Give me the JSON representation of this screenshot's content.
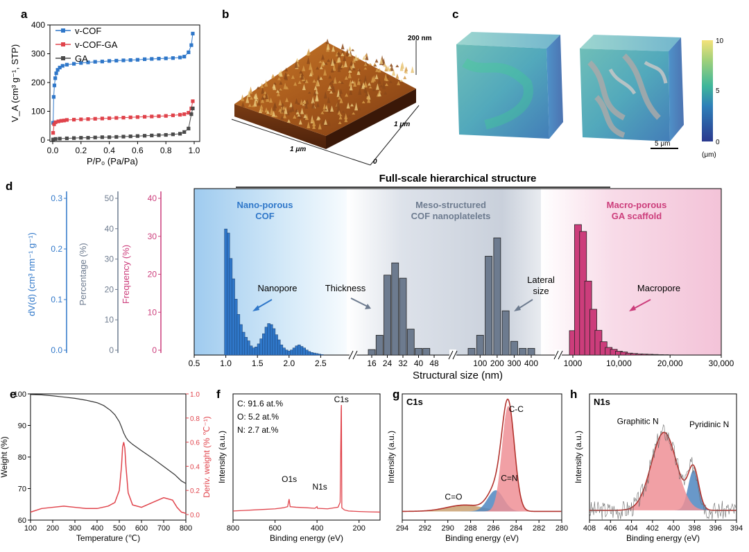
{
  "panel_labels": {
    "a": "a",
    "b": "b",
    "c": "c",
    "d": "d",
    "e": "e",
    "f": "f",
    "g": "g",
    "h": "h"
  },
  "colors": {
    "blue": "#2f77c9",
    "red": "#e0434b",
    "gray": "#4a4a4a",
    "pink": "#cc3d7b",
    "slate": "#6d7b8f",
    "salmon": "#ef8f95",
    "steel": "#4f86c0",
    "darkred": "#b2312c"
  },
  "chart_data": [
    {
      "id": "a",
      "type": "line",
      "xlabel": "P/P₀ (Pa/Pa)",
      "ylabel": "V_A (cm³ g⁻¹, STP)",
      "xlim": [
        0,
        1.0
      ],
      "ylim": [
        0,
        400
      ],
      "xticks": [
        "0.0",
        "0.2",
        "0.4",
        "0.6",
        "0.8",
        "1.0"
      ],
      "yticks": [
        "0",
        "100",
        "200",
        "300",
        "400"
      ],
      "legend": [
        "v-COF",
        "v-COF-GA",
        "GA"
      ],
      "series": [
        {
          "name": "v-COF",
          "color": "#2f77c9",
          "x": [
            0.003,
            0.007,
            0.012,
            0.018,
            0.025,
            0.035,
            0.05,
            0.07,
            0.1,
            0.15,
            0.2,
            0.25,
            0.3,
            0.35,
            0.4,
            0.45,
            0.5,
            0.55,
            0.6,
            0.65,
            0.7,
            0.75,
            0.8,
            0.85,
            0.9,
            0.93,
            0.96,
            0.98,
            0.99
          ],
          "y": [
            60,
            150,
            190,
            215,
            232,
            244,
            252,
            258,
            262,
            265,
            268,
            270,
            272,
            273,
            275,
            276,
            277,
            278,
            279,
            281,
            282,
            283,
            284,
            285,
            287,
            290,
            305,
            330,
            370
          ]
        },
        {
          "name": "v-COF-GA",
          "color": "#e0434b",
          "x": [
            0.003,
            0.01,
            0.02,
            0.04,
            0.06,
            0.08,
            0.1,
            0.15,
            0.2,
            0.25,
            0.3,
            0.35,
            0.4,
            0.45,
            0.5,
            0.55,
            0.6,
            0.65,
            0.7,
            0.75,
            0.8,
            0.85,
            0.9,
            0.93,
            0.96,
            0.98,
            0.99
          ],
          "y": [
            25,
            55,
            62,
            65,
            67,
            68,
            70,
            71,
            72,
            73,
            74,
            75,
            76,
            77,
            78,
            79,
            80,
            81,
            82,
            83,
            84,
            86,
            88,
            90,
            95,
            110,
            135
          ]
        },
        {
          "name": "GA",
          "color": "#4a4a4a",
          "x": [
            0.003,
            0.02,
            0.05,
            0.1,
            0.15,
            0.2,
            0.25,
            0.3,
            0.35,
            0.4,
            0.45,
            0.5,
            0.55,
            0.6,
            0.65,
            0.7,
            0.75,
            0.8,
            0.85,
            0.9,
            0.93,
            0.96,
            0.98,
            0.99
          ],
          "y": [
            2,
            4,
            5,
            6,
            7,
            8,
            8,
            9,
            10,
            10,
            11,
            12,
            13,
            14,
            15,
            16,
            17,
            18,
            20,
            22,
            28,
            40,
            90,
            110
          ]
        }
      ]
    },
    {
      "id": "d",
      "type": "bar",
      "title": "Full-scale hierarchical structure",
      "xlabel": "Structural size (nm)",
      "y_axes": [
        {
          "label": "dV(d) (cm³ nm⁻¹ g⁻¹)",
          "ticks": [
            "0.0",
            "0.1",
            "0.2",
            "0.3"
          ],
          "color": "#2f77c9"
        },
        {
          "label": "Percentage (%)",
          "ticks": [
            "0",
            "10",
            "20",
            "30",
            "40",
            "50"
          ],
          "color": "#6d7b8f"
        },
        {
          "label": "Frequency (%)",
          "ticks": [
            "0",
            "10",
            "20",
            "30",
            "40"
          ],
          "color": "#cc3d7b"
        }
      ],
      "regions": [
        {
          "label": "Nano-porous\nCOF",
          "color": "#2f77c9"
        },
        {
          "label": "Meso-structured\nCOF nanoplatelets",
          "color": "#6d7b8f"
        },
        {
          "label": "Macro-porous\nGA scaffold",
          "color": "#cc3d7b"
        }
      ],
      "annotations": [
        "Nanopore",
        "Thickness",
        "Lateral\nsize",
        "Macropore"
      ],
      "segments": [
        {
          "name": "Nanopore",
          "axis": "dV(d) (cm³ nm⁻¹ g⁻¹)",
          "range": [
            0.5,
            3.0
          ],
          "tick_labels": [
            "0.5",
            "1.0",
            "1.5",
            "2.0",
            "2.5"
          ],
          "x": [
            1.0,
            1.04,
            1.08,
            1.12,
            1.16,
            1.2,
            1.24,
            1.28,
            1.32,
            1.36,
            1.4,
            1.44,
            1.48,
            1.52,
            1.56,
            1.6,
            1.64,
            1.68,
            1.72,
            1.76,
            1.8,
            1.84,
            1.88,
            1.92,
            1.96,
            2.0,
            2.04,
            2.08,
            2.12,
            2.16,
            2.2,
            2.24,
            2.28,
            2.32,
            2.36,
            2.4,
            2.44,
            2.48,
            2.52
          ],
          "values": [
            0.248,
            0.24,
            0.19,
            0.15,
            0.11,
            0.08,
            0.06,
            0.045,
            0.035,
            0.028,
            0.018,
            0.014,
            0.016,
            0.022,
            0.032,
            0.042,
            0.055,
            0.062,
            0.06,
            0.052,
            0.04,
            0.03,
            0.02,
            0.014,
            0.01,
            0.008,
            0.01,
            0.014,
            0.018,
            0.02,
            0.017,
            0.014,
            0.01,
            0.007,
            0.005,
            0.004,
            0.003,
            0.002,
            0.001
          ]
        },
        {
          "name": "Thickness",
          "axis": "Percentage (%)",
          "range": [
            16,
            48
          ],
          "tick_labels": [
            "16",
            "24",
            "32",
            "40",
            "48"
          ],
          "x": [
            "16",
            "20",
            "24",
            "28",
            "32",
            "36",
            "40",
            "44",
            "48"
          ],
          "values": [
            1.8,
            6.5,
            26.2,
            30.2,
            25.2,
            8.5,
            2.2,
            2.2,
            0
          ]
        },
        {
          "name": "Lateral size",
          "axis": "Percentage (%)",
          "range": [
            100,
            400
          ],
          "tick_labels": [
            "100",
            "200",
            "300",
            "400"
          ],
          "x": [
            "50",
            "100",
            "150",
            "200",
            "250",
            "300",
            "350",
            "400"
          ],
          "values": [
            2.2,
            6.5,
            32.4,
            38.4,
            14.5,
            4.5,
            2.2,
            2.2
          ]
        },
        {
          "name": "Macropore",
          "axis": "Frequency (%)",
          "range": [
            1000,
            30000
          ],
          "tick_labels": [
            "1000",
            "10,000",
            "20,000",
            "30,000"
          ],
          "x": [
            "1000",
            "2000",
            "3000",
            "4000",
            "5000",
            "6000",
            "7000",
            "8000",
            "9000",
            "10000",
            "11000",
            "12000",
            "13000",
            "14000",
            "15000",
            "16000",
            "17000",
            "18000",
            "19000",
            "20000"
          ],
          "values": [
            6.4,
            34.2,
            32.4,
            19.4,
            12.0,
            6.5,
            3.5,
            2.0,
            1.5,
            1.0,
            0.8,
            0.5,
            0.4,
            0.3,
            0.25,
            0.2,
            0.15,
            0.1,
            0.08,
            0.05
          ]
        }
      ]
    },
    {
      "id": "e",
      "type": "line",
      "xlabel": "Temperature (℃)",
      "ylabel": "Weight (%)",
      "ylabel2": "Deriv. weight (% ℃⁻¹)",
      "xlim": [
        100,
        800
      ],
      "ylim": [
        60,
        100
      ],
      "ylim2": [
        0,
        1.0
      ],
      "xticks": [
        "100",
        "200",
        "300",
        "400",
        "500",
        "600",
        "700",
        "800"
      ],
      "yticks": [
        "60",
        "70",
        "80",
        "90",
        "100"
      ],
      "yticks2": [
        "0.0",
        "0.2",
        "0.4",
        "0.6",
        "0.8",
        "1.0"
      ],
      "series": [
        {
          "name": "Weight",
          "color": "#333333",
          "x": [
            100,
            150,
            200,
            250,
            300,
            350,
            400,
            430,
            460,
            480,
            500,
            510,
            520,
            530,
            540,
            560,
            600,
            650,
            700,
            750,
            780,
            800
          ],
          "y": [
            99.8,
            99.7,
            99.4,
            99.0,
            98.6,
            98.0,
            97.2,
            96.3,
            94.8,
            93.4,
            91.2,
            89.5,
            87.6,
            86.2,
            85.2,
            84.0,
            82.0,
            79.6,
            77.0,
            74.4,
            72.4,
            71.6
          ]
        },
        {
          "name": "Deriv. weight",
          "color": "#e0434b",
          "axis": "right",
          "x": [
            100,
            150,
            200,
            250,
            300,
            350,
            400,
            450,
            480,
            500,
            510,
            515,
            520,
            525,
            530,
            540,
            560,
            600,
            650,
            700,
            740,
            760,
            780,
            800
          ],
          "y": [
            0.02,
            0.05,
            0.06,
            0.07,
            0.06,
            0.05,
            0.05,
            0.07,
            0.1,
            0.2,
            0.4,
            0.56,
            0.6,
            0.55,
            0.4,
            0.18,
            0.08,
            0.06,
            0.1,
            0.14,
            0.12,
            0.06,
            0.02,
            0.01
          ]
        }
      ]
    },
    {
      "id": "f",
      "type": "line",
      "xlabel": "Binding energy (eV)",
      "ylabel": "Intensity (a.u.)",
      "xlim": [
        800,
        100
      ],
      "xticks": [
        "800",
        "600",
        "400",
        "200"
      ],
      "composition": [
        "C:  91.6 at.%",
        "O:  5.2 at.%",
        "N:  2.7 at.%"
      ],
      "peaks": [
        {
          "label": "C1s",
          "x": 284
        },
        {
          "label": "O1s",
          "x": 532
        },
        {
          "label": "N1s",
          "x": 400
        }
      ],
      "series": [
        {
          "name": "Survey",
          "color": "#e0434b",
          "x": [
            800,
            750,
            700,
            650,
            600,
            560,
            540,
            533,
            531,
            528,
            500,
            450,
            410,
            400,
            398,
            350,
            300,
            290,
            285,
            284,
            283,
            282,
            270,
            250,
            200,
            150,
            100
          ],
          "y": [
            0.02,
            0.025,
            0.03,
            0.035,
            0.04,
            0.05,
            0.06,
            0.13,
            0.1,
            0.06,
            0.055,
            0.05,
            0.045,
            0.06,
            0.045,
            0.04,
            0.055,
            0.1,
            0.96,
            1.0,
            0.5,
            0.05,
            0.03,
            0.02,
            0.015,
            0.012,
            0.01
          ]
        }
      ]
    },
    {
      "id": "g",
      "type": "area",
      "title": "C1s",
      "xlabel": "Binding energy (eV)",
      "ylabel": "Intensity (a.u.)",
      "xlim": [
        294,
        280
      ],
      "xticks": [
        "294",
        "292",
        "290",
        "288",
        "286",
        "284",
        "282",
        "280"
      ],
      "peak_labels": [
        "C-C",
        "C=N",
        "C=O"
      ],
      "components": [
        {
          "name": "C-C",
          "center": 284.7,
          "height": 1.0,
          "width": 0.55,
          "color": "#ef8f95"
        },
        {
          "name": "C=N",
          "center": 285.8,
          "height": 0.2,
          "width": 0.7,
          "color": "#4f86c0"
        },
        {
          "name": "C=O",
          "center": 288.5,
          "height": 0.06,
          "width": 1.6,
          "color": "#c9a070"
        }
      ]
    },
    {
      "id": "h",
      "type": "area",
      "title": "N1s",
      "xlabel": "Binding energy (eV)",
      "ylabel": "Intensity (a.u.)",
      "xlim": [
        408,
        394
      ],
      "xticks": [
        "408",
        "406",
        "404",
        "402",
        "400",
        "398",
        "396",
        "394"
      ],
      "peak_labels": [
        "Graphitic N",
        "Pyridinic N"
      ],
      "components": [
        {
          "name": "Graphitic N",
          "center": 400.9,
          "height": 0.74,
          "width": 1.2,
          "color": "#ef8f95"
        },
        {
          "name": "Pyridinic N",
          "center": 398.1,
          "height": 0.38,
          "width": 0.5,
          "color": "#4f86c0"
        }
      ]
    }
  ],
  "panel_b": {
    "z_label": "200 nm",
    "y_label": "1 μm",
    "x_label": "1 μm",
    "origin_label": "0"
  },
  "panel_c": {
    "colorbar_ticks": [
      "10",
      "5",
      "0"
    ],
    "unit": "(μm)",
    "scale_bar": "5 μm"
  }
}
